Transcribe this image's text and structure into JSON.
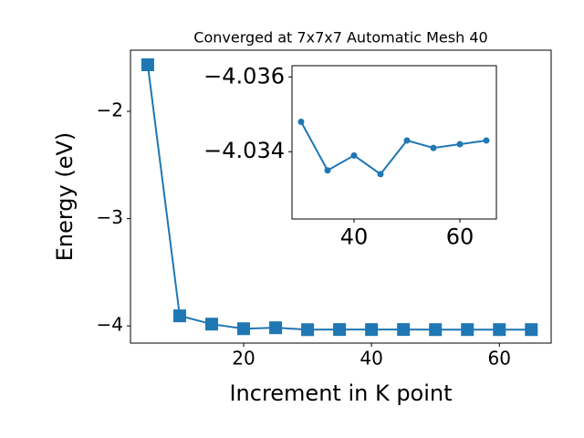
{
  "chart_data": [
    {
      "type": "line",
      "title": "Converged at 7x7x7 Automatic Mesh 40",
      "x_label": "Increment in K point",
      "y_label": "Energy (eV)",
      "x": [
        5,
        10,
        15,
        20,
        25,
        30,
        35,
        40,
        45,
        50,
        55,
        60,
        65
      ],
      "values": [
        -1.566,
        -3.906,
        -3.983,
        -4.026,
        -4.017,
        -4.0348,
        -4.0335,
        -4.0339,
        -4.0334,
        -4.0343,
        -4.0341,
        -4.0342,
        -4.0343
      ],
      "color": "#1f77b4",
      "marker": "square",
      "xlim": [
        2.3,
        68.1
      ],
      "xticks": [
        20,
        40,
        60
      ],
      "ylim": [
        -4.16,
        -1.43
      ],
      "yticks": [
        {
          "value": -4,
          "label": "−4"
        },
        {
          "value": -3,
          "label": "−3"
        },
        {
          "value": -2,
          "label": "−2"
        }
      ]
    },
    {
      "type": "line",
      "x": [
        30,
        35,
        40,
        45,
        50,
        55,
        60,
        65
      ],
      "values": [
        -4.0348,
        -4.0335,
        -4.0339,
        -4.0334,
        -4.0343,
        -4.0341,
        -4.0342,
        -4.0343
      ],
      "color": "#1f77b4",
      "marker": "circle",
      "xlim": [
        28.28,
        66.9
      ],
      "xticks": [
        40,
        60
      ],
      "ylim": [
        -4.0322,
        -4.0363
      ],
      "yticks": [
        {
          "value": -4.034,
          "label": "−4.034"
        },
        {
          "value": -4.036,
          "label": "−4.036"
        }
      ]
    }
  ]
}
